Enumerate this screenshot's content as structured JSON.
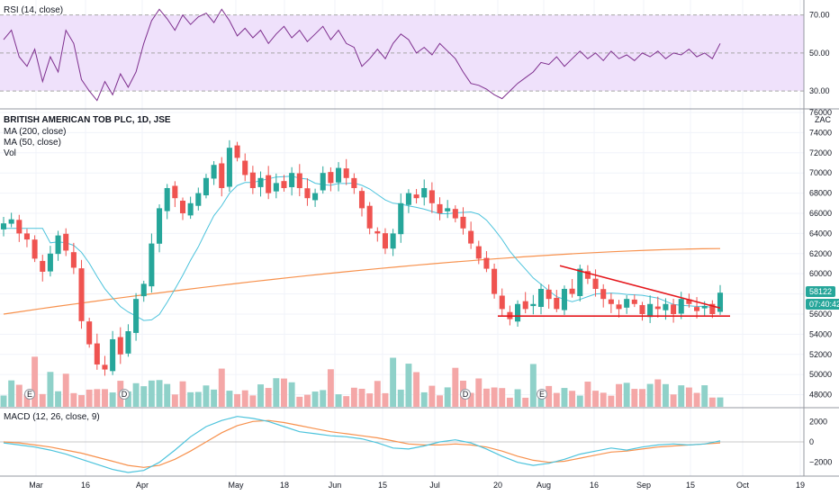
{
  "colors": {
    "up": "#26a69a",
    "down": "#ef5350",
    "vol_up": "#8fd1c9",
    "vol_down": "#f4a7a7",
    "ma200": "#f7914d",
    "ma50": "#4cc3dc",
    "rsi": "#7e2f8e",
    "rsi_band": "#efe1fb",
    "macd": "#4cc3dc",
    "signal": "#f7914d",
    "trendline": "#e5171c",
    "price_badge": "#26a69a",
    "grid": "#f0f3fa"
  },
  "legend": {
    "title": "BRITISH AMERICAN TOB PLC, 1D, JSE",
    "ma200": "MA (200, close)",
    "ma50": "MA (50, close)",
    "vol": "Vol",
    "rsi": "RSI (14, close)",
    "macd": "MACD (12, 26, close, 9)",
    "currency": "ZAC"
  },
  "price_badge": {
    "value": "58122",
    "countdown": "07:40:42"
  },
  "event_markers": [
    "E",
    "D",
    "D",
    "E"
  ],
  "chart_data": [
    {
      "type": "candlestick",
      "title": "BRITISH AMERICAN TOB PLC, 1D, JSE",
      "ylim": [
        46800,
        76000
      ],
      "y_ticks": [
        48000,
        50000,
        52000,
        54000,
        56000,
        58000,
        60000,
        62000,
        64000,
        66000,
        68000,
        70000,
        72000,
        74000,
        76000
      ],
      "x_ticks": [
        "Mar",
        "16",
        "Apr",
        "May",
        "18",
        "Jun",
        "15",
        "Jul",
        "20",
        "Aug",
        "16",
        "Sep",
        "15",
        "Oct",
        "19"
      ],
      "close_path": [
        65000,
        65400,
        64000,
        63400,
        61500,
        60200,
        62000,
        63800,
        62300,
        60600,
        55300,
        53000,
        51000,
        50500,
        53500,
        52000,
        54300,
        57500,
        59000,
        63000,
        66500,
        68500,
        67500,
        66000,
        67000,
        68000,
        69500,
        70800,
        68500,
        72500,
        71500,
        69800,
        68500,
        69500,
        68000,
        69000,
        68500,
        70000,
        68500,
        67500,
        68000,
        70000,
        69000,
        70500,
        69500,
        68500,
        66500,
        64500,
        64000,
        62500,
        64000,
        67000,
        68000,
        67500,
        68500,
        67000,
        66000,
        66500,
        65500,
        64500,
        63000,
        61500,
        60500,
        58000,
        56500,
        55500,
        57000,
        56500,
        57000,
        58500,
        57500,
        56500,
        58500,
        58000,
        60500,
        59500,
        58500,
        57500,
        57000,
        56500,
        57500,
        57000,
        56000,
        57000,
        56500,
        57000,
        56000,
        57500,
        57000,
        56300,
        56800,
        56000,
        58122
      ],
      "moving_averages": [
        {
          "name": "MA (200, close)",
          "start": 56000,
          "end": 62500
        },
        {
          "name": "MA (50, close)",
          "start": 64500,
          "end": 58000
        }
      ],
      "trendlines": [
        {
          "from": [
            "Aug",
            60800
          ],
          "to": [
            "Sep 20",
            56600
          ]
        },
        {
          "from": [
            "Jul 20",
            55800
          ],
          "to": [
            "Sep 23",
            55800
          ]
        }
      ],
      "last_price": 58122
    },
    {
      "type": "line",
      "title": "RSI (14, close)",
      "ylim": [
        22,
        76
      ],
      "y_ticks": [
        30,
        50,
        70
      ],
      "band": [
        30,
        70
      ],
      "values": [
        57,
        62,
        48,
        43,
        52,
        35,
        48,
        40,
        62,
        55,
        36,
        30,
        25,
        35,
        28,
        39,
        32,
        40,
        55,
        67,
        73,
        68,
        62,
        70,
        65,
        69,
        71,
        66,
        73,
        67,
        59,
        63,
        58,
        62,
        55,
        60,
        64,
        58,
        62,
        56,
        60,
        64,
        57,
        62,
        55,
        53,
        43,
        47,
        52,
        47,
        55,
        60,
        57,
        50,
        53,
        49,
        55,
        51,
        47,
        40,
        34,
        33,
        31,
        28,
        26,
        30,
        34,
        37,
        40,
        45,
        44,
        48,
        43,
        47,
        51,
        47,
        50,
        46,
        51,
        47,
        49,
        46,
        50,
        48,
        51,
        47,
        50,
        49,
        52,
        48,
        50,
        47,
        55
      ]
    },
    {
      "type": "line",
      "title": "MACD (12, 26, close, 9)",
      "ylim": [
        -3000,
        3000
      ],
      "y_ticks": [
        2000,
        0,
        -2000
      ],
      "series": [
        {
          "name": "MACD",
          "values": [
            -100,
            -300,
            -500,
            -800,
            -1200,
            -1700,
            -2200,
            -2700,
            -3000,
            -2800,
            -2000,
            -800,
            500,
            1500,
            2100,
            2500,
            2300,
            2000,
            1500,
            1000,
            800,
            600,
            500,
            300,
            -100,
            -600,
            -700,
            -400,
            0,
            200,
            -100,
            -700,
            -1400,
            -2000,
            -2300,
            -2100,
            -1700,
            -1200,
            -900,
            -600,
            -800,
            -500,
            -300,
            -200,
            -300,
            -200,
            100
          ]
        },
        {
          "name": "Signal",
          "values": [
            0,
            -100,
            -300,
            -500,
            -800,
            -1100,
            -1500,
            -1900,
            -2300,
            -2500,
            -2300,
            -1700,
            -900,
            0,
            900,
            1600,
            2000,
            2100,
            1900,
            1600,
            1300,
            1000,
            800,
            600,
            400,
            100,
            -200,
            -300,
            -300,
            -200,
            -300,
            -500,
            -900,
            -1400,
            -1800,
            -2000,
            -1900,
            -1600,
            -1300,
            -1000,
            -900,
            -700,
            -500,
            -400,
            -300,
            -200,
            -100
          ]
        }
      ]
    }
  ]
}
